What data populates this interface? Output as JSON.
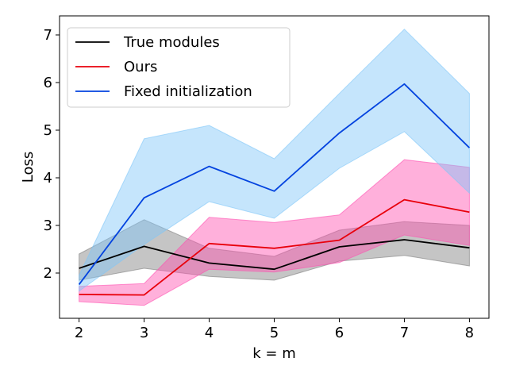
{
  "chart_data": {
    "type": "line",
    "xlabel": "k = m",
    "ylabel": "Loss",
    "x": [
      2,
      3,
      4,
      5,
      6,
      7,
      8
    ],
    "xlim": [
      1.7,
      8.3
    ],
    "ylim": [
      1.05,
      7.4
    ],
    "xticks": [
      "2",
      "3",
      "4",
      "5",
      "6",
      "7",
      "8"
    ],
    "yticks": [
      "2",
      "3",
      "4",
      "5",
      "6",
      "7"
    ],
    "grid": false,
    "legend_position": "top-left",
    "series": [
      {
        "name": "True modules",
        "color": "#000000",
        "band_color": "#7f7f7f",
        "mean": [
          2.1,
          2.56,
          2.21,
          2.08,
          2.55,
          2.7,
          2.53
        ],
        "lower": [
          1.85,
          2.1,
          1.93,
          1.85,
          2.25,
          2.37,
          2.15
        ],
        "upper": [
          2.4,
          3.12,
          2.52,
          2.35,
          2.9,
          3.08,
          3.0
        ]
      },
      {
        "name": "Ours",
        "color": "#e8000b",
        "band_color": "#ff4fb0",
        "mean": [
          1.55,
          1.54,
          2.62,
          2.52,
          2.69,
          3.54,
          3.28
        ],
        "lower": [
          1.4,
          1.32,
          2.08,
          2.02,
          2.22,
          2.8,
          2.58
        ],
        "upper": [
          1.72,
          1.78,
          3.17,
          3.06,
          3.22,
          4.38,
          4.22
        ]
      },
      {
        "name": "Fixed initialization",
        "color": "#0343df",
        "band_color": "#7fc6f8",
        "mean": [
          1.76,
          3.58,
          4.24,
          3.72,
          4.94,
          5.97,
          4.63
        ],
        "lower": [
          1.62,
          2.6,
          3.5,
          3.15,
          4.2,
          4.97,
          3.68
        ],
        "upper": [
          1.95,
          4.82,
          5.1,
          4.4,
          5.77,
          7.12,
          5.77
        ]
      }
    ]
  }
}
